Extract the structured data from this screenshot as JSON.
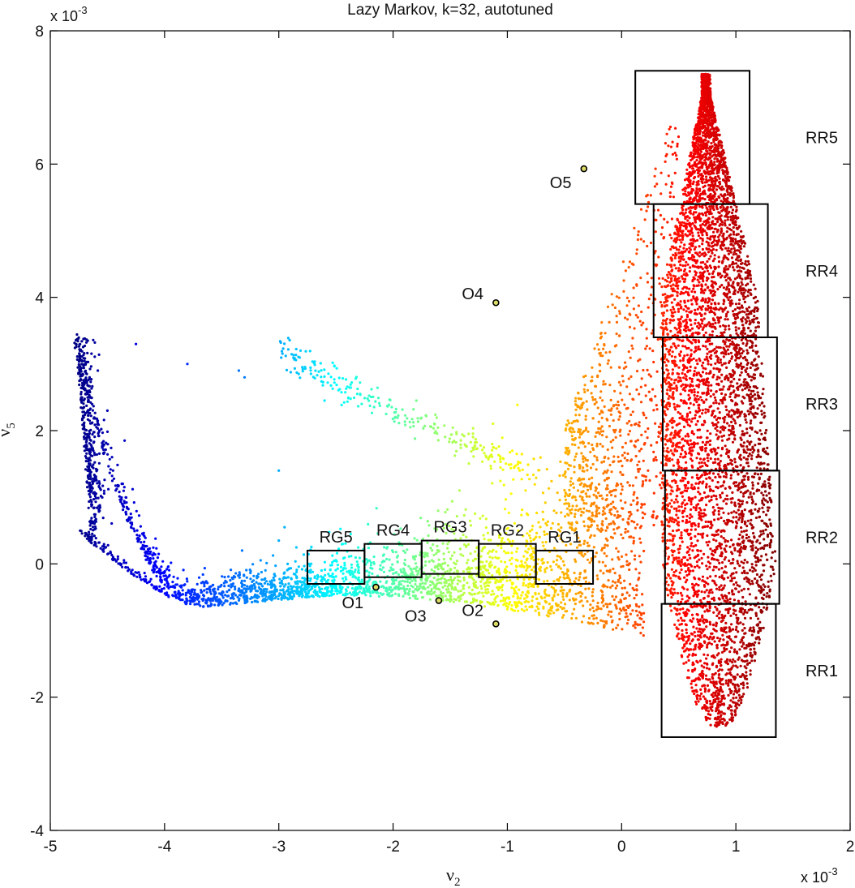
{
  "chart_data": {
    "type": "scatter",
    "title": "Lazy Markov, k=32, autotuned",
    "xlabel": "ν",
    "xlabel_sub": "2",
    "ylabel": "ν",
    "ylabel_sub": "5",
    "x_scale": "x 10",
    "x_scale_exp": "-3",
    "y_scale": "x 10",
    "y_scale_exp": "-3",
    "xlim": [
      -5,
      2
    ],
    "ylim": [
      -4,
      8
    ],
    "xticks": [
      -5,
      -4,
      -3,
      -2,
      -1,
      0,
      1,
      2
    ],
    "yticks": [
      -4,
      -2,
      0,
      2,
      4,
      6,
      8
    ],
    "grid": false,
    "colormap": "jet (colored by ν2)",
    "colormap_colors": [
      "#00008f",
      "#0000ff",
      "#00ffff",
      "#ffff00",
      "#ff0000",
      "#800000"
    ],
    "box_color": "#000000",
    "outlier_fill": "#dddd66",
    "boxes": [
      {
        "label": "RG1",
        "x0": -0.75,
        "x1": -0.25,
        "y0": -0.3,
        "y1": 0.2
      },
      {
        "label": "RG2",
        "x0": -1.25,
        "x1": -0.75,
        "y0": -0.2,
        "y1": 0.3
      },
      {
        "label": "RG3",
        "x0": -1.75,
        "x1": -1.25,
        "y0": -0.15,
        "y1": 0.35
      },
      {
        "label": "RG4",
        "x0": -2.25,
        "x1": -1.75,
        "y0": -0.2,
        "y1": 0.3
      },
      {
        "label": "RG5",
        "x0": -2.75,
        "x1": -2.25,
        "y0": -0.3,
        "y1": 0.2
      },
      {
        "label": "RR1",
        "x0": 0.35,
        "x1": 1.35,
        "y0": -2.6,
        "y1": -0.6
      },
      {
        "label": "RR2",
        "x0": 0.38,
        "x1": 1.38,
        "y0": -0.6,
        "y1": 1.4
      },
      {
        "label": "RR3",
        "x0": 0.36,
        "x1": 1.36,
        "y0": 1.4,
        "y1": 3.4
      },
      {
        "label": "RR4",
        "x0": 0.28,
        "x1": 1.28,
        "y0": 3.4,
        "y1": 5.4
      },
      {
        "label": "RR5",
        "x0": 0.12,
        "x1": 1.12,
        "y0": 5.4,
        "y1": 7.4
      }
    ],
    "outliers": [
      {
        "label": "O1",
        "x": -2.15,
        "y": -0.35
      },
      {
        "label": "O2",
        "x": -1.1,
        "y": -0.9
      },
      {
        "label": "O3",
        "x": -1.6,
        "y": -0.55
      },
      {
        "label": "O4",
        "x": -1.1,
        "y": 3.92
      },
      {
        "label": "O5",
        "x": -0.33,
        "y": 5.93
      }
    ]
  }
}
